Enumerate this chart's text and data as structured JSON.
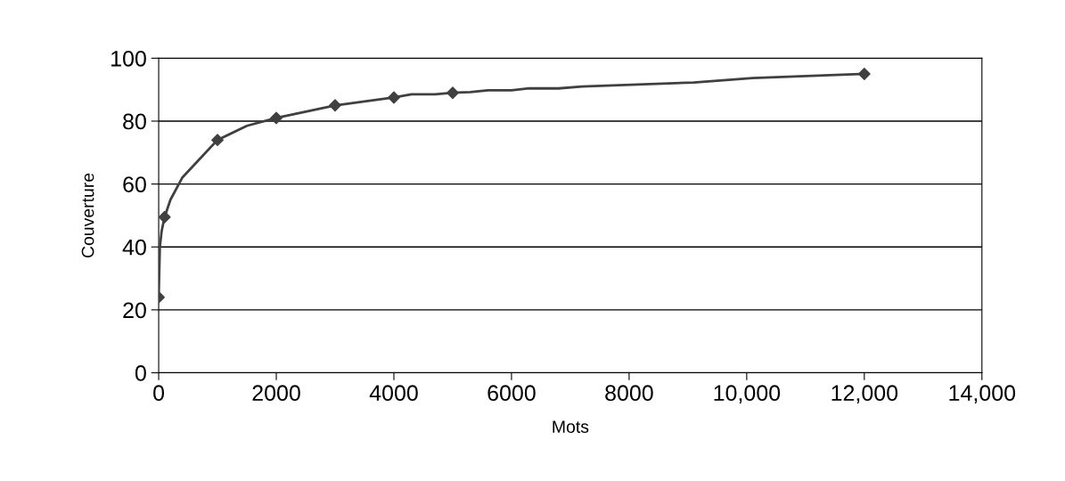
{
  "chart_data": {
    "type": "line",
    "xlabel": "Mots",
    "ylabel": "Couverture",
    "series": [
      {
        "color": "#404040",
        "marker": "none",
        "x": [
          0,
          20,
          50,
          100,
          200,
          400,
          750,
          1000,
          1500,
          2000,
          3000,
          4000,
          4300,
          4700,
          5000,
          5300,
          5600,
          6000,
          6300,
          6800,
          7200,
          9100,
          10100,
          12000
        ],
        "values": [
          24,
          40,
          45,
          49.5,
          55,
          62,
          69,
          74,
          78.5,
          81,
          85,
          87.5,
          88.5,
          88.5,
          89,
          89.2,
          89.8,
          89.8,
          90.4,
          90.4,
          91,
          92.3,
          93.7,
          95
        ]
      },
      {
        "type": "scatter",
        "color": "#404040",
        "marker": "diamond",
        "x": [
          0,
          100,
          1000,
          2000,
          3000,
          4000,
          5000,
          12000
        ],
        "values": [
          24,
          49.5,
          74,
          81,
          85,
          87.5,
          89,
          95
        ]
      }
    ],
    "xlim": [
      0,
      14000
    ],
    "xticks": [
      0,
      2000,
      4000,
      6000,
      8000,
      {
        "value": 10000,
        "label": "10,000"
      },
      {
        "value": 12000,
        "label": "12,000"
      },
      {
        "value": 14000,
        "label": "14,000"
      }
    ],
    "ylim": [
      0,
      100
    ],
    "yticks": [
      0,
      20,
      40,
      60,
      80,
      100
    ],
    "grid": "y"
  }
}
